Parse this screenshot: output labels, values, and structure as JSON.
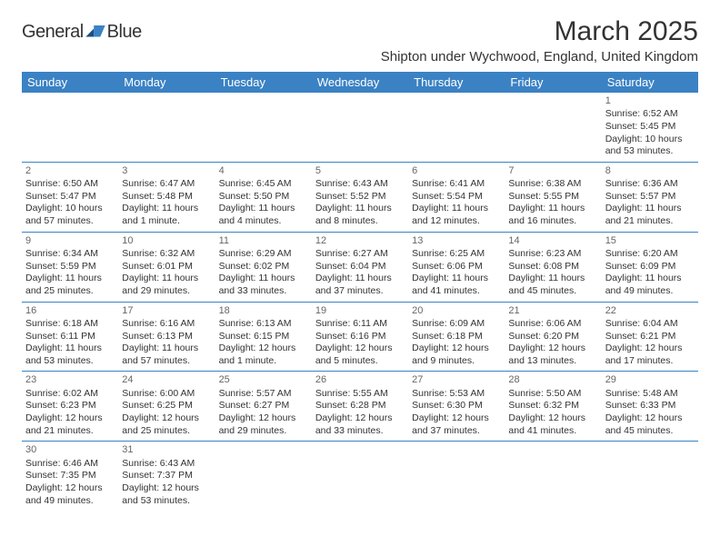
{
  "logo": {
    "text1": "General",
    "text2": "Blue"
  },
  "title": "March 2025",
  "location": "Shipton under Wychwood, England, United Kingdom",
  "colors": {
    "header_bg": "#3b82c4",
    "header_fg": "#ffffff",
    "border": "#3b82c4",
    "text": "#333333",
    "daynum": "#666666",
    "logo_blue": "#2f6fb0"
  },
  "weekdays": [
    "Sunday",
    "Monday",
    "Tuesday",
    "Wednesday",
    "Thursday",
    "Friday",
    "Saturday"
  ],
  "weeks": [
    [
      null,
      null,
      null,
      null,
      null,
      null,
      {
        "n": "1",
        "sr": "Sunrise: 6:52 AM",
        "ss": "Sunset: 5:45 PM",
        "dl": "Daylight: 10 hours and 53 minutes."
      }
    ],
    [
      {
        "n": "2",
        "sr": "Sunrise: 6:50 AM",
        "ss": "Sunset: 5:47 PM",
        "dl": "Daylight: 10 hours and 57 minutes."
      },
      {
        "n": "3",
        "sr": "Sunrise: 6:47 AM",
        "ss": "Sunset: 5:48 PM",
        "dl": "Daylight: 11 hours and 1 minute."
      },
      {
        "n": "4",
        "sr": "Sunrise: 6:45 AM",
        "ss": "Sunset: 5:50 PM",
        "dl": "Daylight: 11 hours and 4 minutes."
      },
      {
        "n": "5",
        "sr": "Sunrise: 6:43 AM",
        "ss": "Sunset: 5:52 PM",
        "dl": "Daylight: 11 hours and 8 minutes."
      },
      {
        "n": "6",
        "sr": "Sunrise: 6:41 AM",
        "ss": "Sunset: 5:54 PM",
        "dl": "Daylight: 11 hours and 12 minutes."
      },
      {
        "n": "7",
        "sr": "Sunrise: 6:38 AM",
        "ss": "Sunset: 5:55 PM",
        "dl": "Daylight: 11 hours and 16 minutes."
      },
      {
        "n": "8",
        "sr": "Sunrise: 6:36 AM",
        "ss": "Sunset: 5:57 PM",
        "dl": "Daylight: 11 hours and 21 minutes."
      }
    ],
    [
      {
        "n": "9",
        "sr": "Sunrise: 6:34 AM",
        "ss": "Sunset: 5:59 PM",
        "dl": "Daylight: 11 hours and 25 minutes."
      },
      {
        "n": "10",
        "sr": "Sunrise: 6:32 AM",
        "ss": "Sunset: 6:01 PM",
        "dl": "Daylight: 11 hours and 29 minutes."
      },
      {
        "n": "11",
        "sr": "Sunrise: 6:29 AM",
        "ss": "Sunset: 6:02 PM",
        "dl": "Daylight: 11 hours and 33 minutes."
      },
      {
        "n": "12",
        "sr": "Sunrise: 6:27 AM",
        "ss": "Sunset: 6:04 PM",
        "dl": "Daylight: 11 hours and 37 minutes."
      },
      {
        "n": "13",
        "sr": "Sunrise: 6:25 AM",
        "ss": "Sunset: 6:06 PM",
        "dl": "Daylight: 11 hours and 41 minutes."
      },
      {
        "n": "14",
        "sr": "Sunrise: 6:23 AM",
        "ss": "Sunset: 6:08 PM",
        "dl": "Daylight: 11 hours and 45 minutes."
      },
      {
        "n": "15",
        "sr": "Sunrise: 6:20 AM",
        "ss": "Sunset: 6:09 PM",
        "dl": "Daylight: 11 hours and 49 minutes."
      }
    ],
    [
      {
        "n": "16",
        "sr": "Sunrise: 6:18 AM",
        "ss": "Sunset: 6:11 PM",
        "dl": "Daylight: 11 hours and 53 minutes."
      },
      {
        "n": "17",
        "sr": "Sunrise: 6:16 AM",
        "ss": "Sunset: 6:13 PM",
        "dl": "Daylight: 11 hours and 57 minutes."
      },
      {
        "n": "18",
        "sr": "Sunrise: 6:13 AM",
        "ss": "Sunset: 6:15 PM",
        "dl": "Daylight: 12 hours and 1 minute."
      },
      {
        "n": "19",
        "sr": "Sunrise: 6:11 AM",
        "ss": "Sunset: 6:16 PM",
        "dl": "Daylight: 12 hours and 5 minutes."
      },
      {
        "n": "20",
        "sr": "Sunrise: 6:09 AM",
        "ss": "Sunset: 6:18 PM",
        "dl": "Daylight: 12 hours and 9 minutes."
      },
      {
        "n": "21",
        "sr": "Sunrise: 6:06 AM",
        "ss": "Sunset: 6:20 PM",
        "dl": "Daylight: 12 hours and 13 minutes."
      },
      {
        "n": "22",
        "sr": "Sunrise: 6:04 AM",
        "ss": "Sunset: 6:21 PM",
        "dl": "Daylight: 12 hours and 17 minutes."
      }
    ],
    [
      {
        "n": "23",
        "sr": "Sunrise: 6:02 AM",
        "ss": "Sunset: 6:23 PM",
        "dl": "Daylight: 12 hours and 21 minutes."
      },
      {
        "n": "24",
        "sr": "Sunrise: 6:00 AM",
        "ss": "Sunset: 6:25 PM",
        "dl": "Daylight: 12 hours and 25 minutes."
      },
      {
        "n": "25",
        "sr": "Sunrise: 5:57 AM",
        "ss": "Sunset: 6:27 PM",
        "dl": "Daylight: 12 hours and 29 minutes."
      },
      {
        "n": "26",
        "sr": "Sunrise: 5:55 AM",
        "ss": "Sunset: 6:28 PM",
        "dl": "Daylight: 12 hours and 33 minutes."
      },
      {
        "n": "27",
        "sr": "Sunrise: 5:53 AM",
        "ss": "Sunset: 6:30 PM",
        "dl": "Daylight: 12 hours and 37 minutes."
      },
      {
        "n": "28",
        "sr": "Sunrise: 5:50 AM",
        "ss": "Sunset: 6:32 PM",
        "dl": "Daylight: 12 hours and 41 minutes."
      },
      {
        "n": "29",
        "sr": "Sunrise: 5:48 AM",
        "ss": "Sunset: 6:33 PM",
        "dl": "Daylight: 12 hours and 45 minutes."
      }
    ],
    [
      {
        "n": "30",
        "sr": "Sunrise: 6:46 AM",
        "ss": "Sunset: 7:35 PM",
        "dl": "Daylight: 12 hours and 49 minutes."
      },
      {
        "n": "31",
        "sr": "Sunrise: 6:43 AM",
        "ss": "Sunset: 7:37 PM",
        "dl": "Daylight: 12 hours and 53 minutes."
      },
      null,
      null,
      null,
      null,
      null
    ]
  ]
}
